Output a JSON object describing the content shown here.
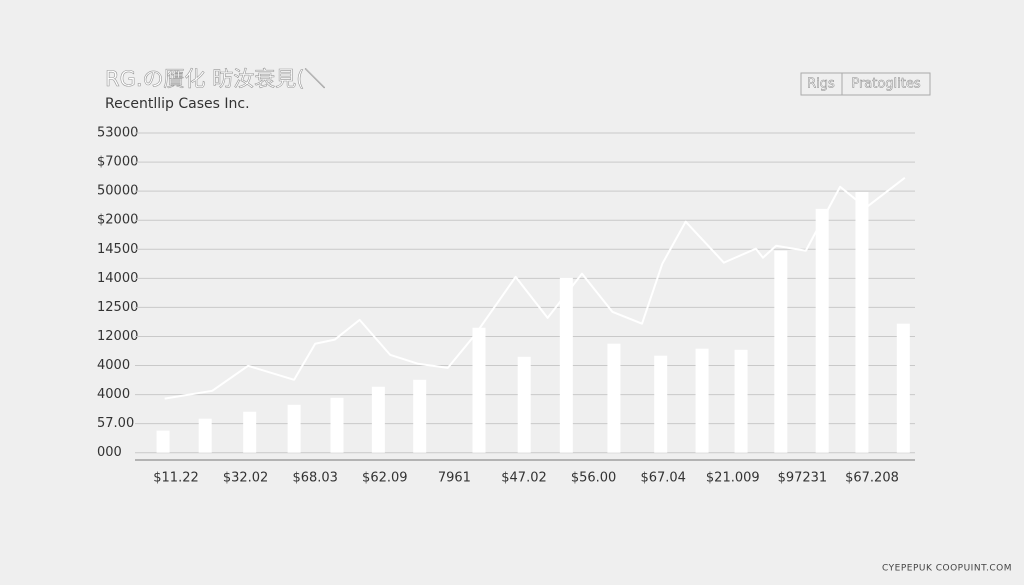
{
  "chart_data": {
    "type": "bar_line",
    "title": "RG.の贋化 昉汝衰見(＼",
    "subtitle": "Recentllip Cases Inc.",
    "watermark": "CYEPEPUK COOPUINT.COM",
    "legend": "top-right",
    "grid": true,
    "xlim": [
      0,
      100
    ],
    "ylim": [
      -0.25,
      11
    ],
    "yticks": [
      {
        "value": 0,
        "label": "000"
      },
      {
        "value": 1,
        "label": "57.00"
      },
      {
        "value": 2,
        "label": "4000"
      },
      {
        "value": 3,
        "label": "4000"
      },
      {
        "value": 4,
        "label": "12000"
      },
      {
        "value": 5,
        "label": "12500"
      },
      {
        "value": 6,
        "label": "14000"
      },
      {
        "value": 7,
        "label": "14500"
      },
      {
        "value": 8,
        "label": "$2000"
      },
      {
        "value": 9,
        "label": "50000"
      },
      {
        "value": 10,
        "label": "$7000"
      },
      {
        "value": 11,
        "label": "53000"
      }
    ],
    "x_axis_labels": [
      "$11.22",
      "$32.02",
      "$68.03",
      "$62.09",
      "7961",
      "$47.02",
      "$56.00",
      "$67.04",
      "$21.009",
      "$97231",
      "$67.208"
    ],
    "series": [
      {
        "name": "Rigs",
        "kind": "bar",
        "color": "#ffffff",
        "x": [
          3.6,
          9.0,
          14.7,
          20.4,
          25.9,
          31.2,
          36.5,
          44.1,
          49.9,
          55.3,
          61.4,
          67.4,
          72.7,
          77.7,
          82.8,
          88.1,
          93.2,
          98.5
        ],
        "values": [
          0.76,
          1.17,
          1.41,
          1.65,
          1.89,
          2.27,
          2.51,
          4.3,
          3.3,
          6.02,
          3.75,
          3.34,
          3.58,
          3.54,
          6.95,
          8.39,
          8.97,
          4.44
        ]
      },
      {
        "name": "Pratoglites",
        "kind": "line",
        "color": "#ffffff",
        "x": [
          3.8,
          9.9,
          14.5,
          20.4,
          23.1,
          25.6,
          28.8,
          32.7,
          36.3,
          40.1,
          43.6,
          48.8,
          52.9,
          57.3,
          61.2,
          65.0,
          67.6,
          70.6,
          75.5,
          79.6,
          80.5,
          82.2,
          86.0,
          90.4,
          93.7,
          98.7
        ],
        "values": [
          1.86,
          2.13,
          2.99,
          2.51,
          3.75,
          3.89,
          4.57,
          3.37,
          3.06,
          2.92,
          4.06,
          6.05,
          4.64,
          6.16,
          4.85,
          4.44,
          6.5,
          7.95,
          6.54,
          7.02,
          6.71,
          7.12,
          6.95,
          9.15,
          8.43,
          9.46
        ]
      }
    ]
  }
}
